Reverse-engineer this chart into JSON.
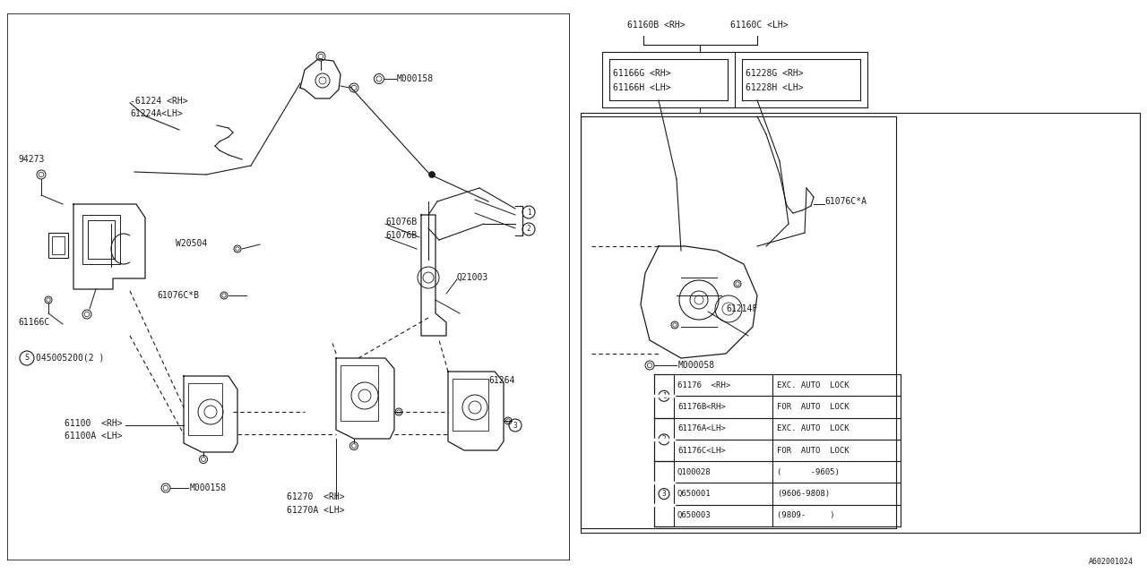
{
  "bg_color": "#ffffff",
  "line_color": "#1a1a1a",
  "font_family": "monospace",
  "fs": 7.0,
  "fs_small": 6.0,
  "table_rows": [
    {
      "circle": "1",
      "part": "61176  <RH>",
      "desc": "EXC. AUTO  LOCK"
    },
    {
      "circle": "",
      "part": "61176B<RH>",
      "desc": "FOR  AUTO  LOCK"
    },
    {
      "circle": "2",
      "part": "61176A<LH>",
      "desc": "EXC. AUTO  LOCK"
    },
    {
      "circle": "",
      "part": "61176C<LH>",
      "desc": "FOR  AUTO  LOCK"
    },
    {
      "circle": "",
      "part": "Q100028",
      "desc": "(      -9605)"
    },
    {
      "circle": "3",
      "part": "Q650001",
      "desc": "(9606-9808)"
    },
    {
      "circle": "",
      "part": "Q650003",
      "desc": "(9809-     )"
    }
  ],
  "footer_text": "A602001024"
}
